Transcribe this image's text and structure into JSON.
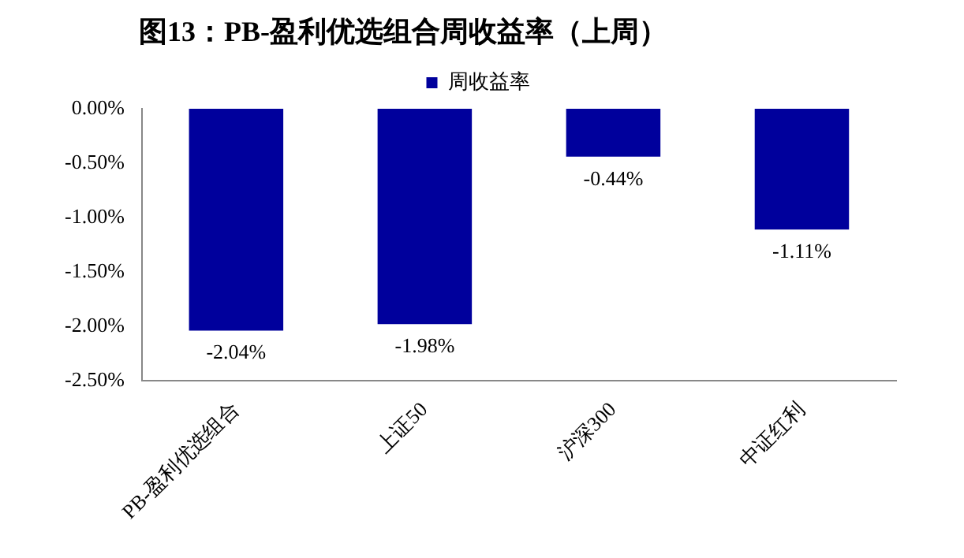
{
  "chart_data": {
    "type": "bar",
    "title": "图13：PB-盈利优选组合周收益率（上周）",
    "categories": [
      "PB-盈利优选组合",
      "上证50",
      "沪深300",
      "中证红利"
    ],
    "series": [
      {
        "name": "周收益率",
        "color": "#00009c",
        "values": [
          -2.04,
          -1.98,
          -0.44,
          -1.11
        ],
        "value_labels": [
          "-2.04%",
          "-1.98%",
          "-0.44%",
          "-1.11%"
        ]
      }
    ],
    "ylim": [
      -2.5,
      0
    ],
    "yticks": [
      {
        "value": 0,
        "label": "0.00%"
      },
      {
        "value": -0.5,
        "label": "-0.50%"
      },
      {
        "value": -1,
        "label": "-1.00%"
      },
      {
        "value": -1.5,
        "label": "-1.50%"
      },
      {
        "value": -2,
        "label": "-2.00%"
      },
      {
        "value": -2.5,
        "label": "-2.50%"
      }
    ],
    "grid": false,
    "legend": "top"
  }
}
